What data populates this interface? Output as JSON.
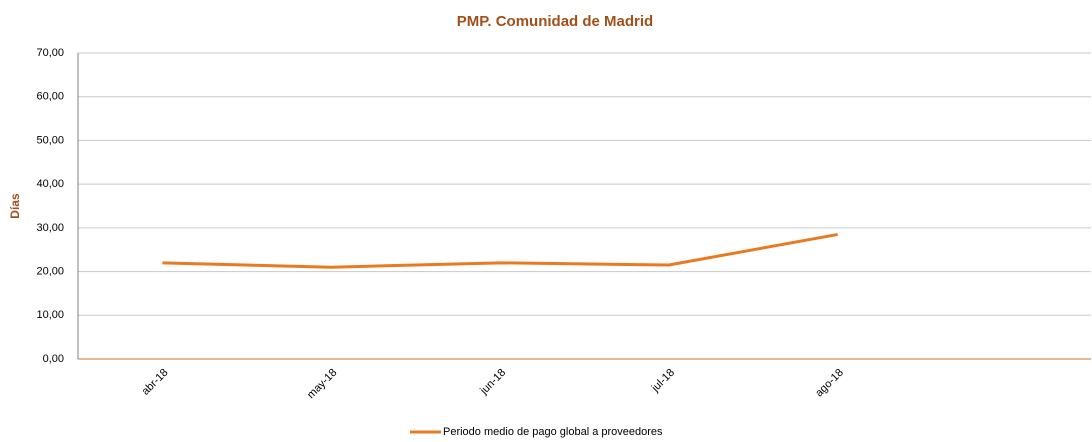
{
  "chart_data": {
    "type": "line",
    "title": "PMP. Comunidad de Madrid",
    "y_label": "Días",
    "categories": [
      "abr-18",
      "may-18",
      "jun-18",
      "jul-18",
      "ago-18",
      null
    ],
    "series": [
      {
        "name": "Periodo medio de pago global a proveedores",
        "color": "#e97a1f",
        "values": [
          22,
          21,
          22,
          21.5,
          28.5,
          null
        ]
      }
    ],
    "ylim": [
      0,
      70
    ],
    "yticks": [
      {
        "value": 0,
        "label": "0,00"
      },
      {
        "value": 10,
        "label": "10,00"
      },
      {
        "value": 20,
        "label": "20,00"
      },
      {
        "value": 30,
        "label": "30,00"
      },
      {
        "value": 40,
        "label": "40,00"
      },
      {
        "value": 50,
        "label": "50,00"
      },
      {
        "value": 60,
        "label": "60,00"
      },
      {
        "value": 70,
        "label": "70,00"
      }
    ],
    "grid": true,
    "legend": "bottom"
  }
}
